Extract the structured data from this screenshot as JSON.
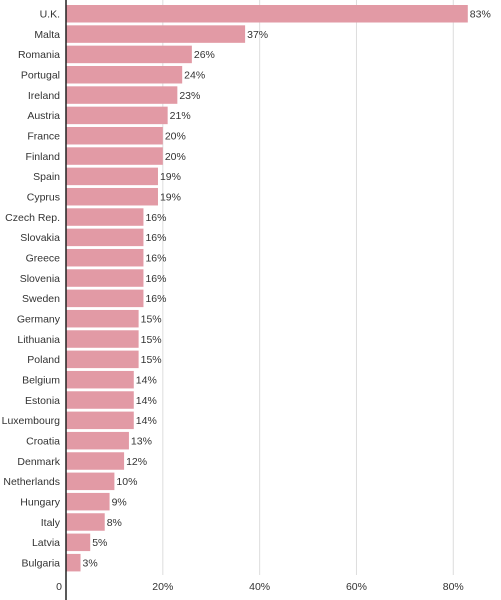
{
  "chart_data": {
    "type": "bar",
    "orientation": "horizontal",
    "title": "",
    "xlabel": "",
    "ylabel": "",
    "categories": [
      "U.K.",
      "Malta",
      "Romania",
      "Portugal",
      "Ireland",
      "Austria",
      "France",
      "Finland",
      "Spain",
      "Cyprus",
      "Czech Rep.",
      "Slovakia",
      "Greece",
      "Slovenia",
      "Sweden",
      "Germany",
      "Lithuania",
      "Poland",
      "Belgium",
      "Estonia",
      "Luxembourg",
      "Croatia",
      "Denmark",
      "Netherlands",
      "Hungary",
      "Italy",
      "Latvia",
      "Bulgaria"
    ],
    "values": [
      83,
      37,
      26,
      24,
      23,
      21,
      20,
      20,
      19,
      19,
      16,
      16,
      16,
      16,
      16,
      15,
      15,
      15,
      14,
      14,
      14,
      13,
      12,
      10,
      9,
      8,
      5,
      3
    ],
    "value_labels": [
      "83%",
      "37%",
      "26%",
      "24%",
      "23%",
      "21%",
      "20%",
      "20%",
      "19%",
      "19%",
      "16%",
      "16%",
      "16%",
      "16%",
      "16%",
      "15%",
      "15%",
      "15%",
      "14%",
      "14%",
      "14%",
      "13%",
      "12%",
      "10%",
      "9%",
      "8%",
      "5%",
      "3%"
    ],
    "xlim": [
      0,
      88
    ],
    "x_ticks": [
      0,
      20,
      40,
      60,
      80
    ],
    "x_tick_labels": [
      "0",
      "20%",
      "40%",
      "60%",
      "80%"
    ],
    "grid": "vertical",
    "bar_color": "#e29aa5",
    "axis_color": "#222222",
    "grid_color": "#dddddd"
  }
}
